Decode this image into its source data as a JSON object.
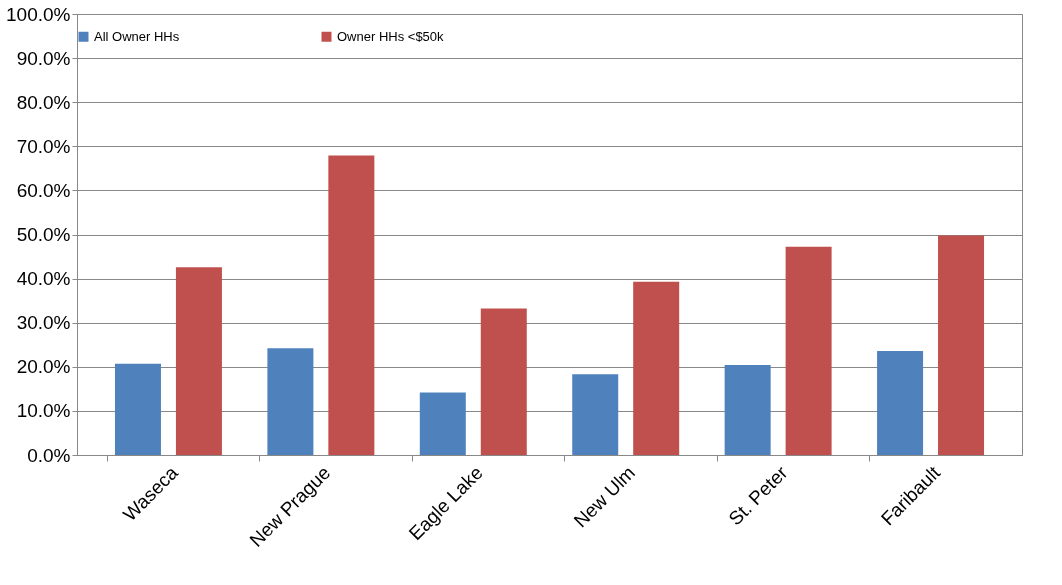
{
  "chart_data": {
    "type": "bar",
    "categories": [
      "Waseca",
      "New Prague",
      "Eagle Lake",
      "New Ulm",
      "St. Peter",
      "Faribault"
    ],
    "series": [
      {
        "name": "All Owner HHs",
        "color": "#4f81bd",
        "values": [
          20.7,
          24.2,
          14.2,
          18.3,
          20.4,
          23.6
        ]
      },
      {
        "name": "Owner HHs <$50k",
        "color": "#c0504d",
        "values": [
          42.6,
          67.9,
          33.2,
          39.3,
          47.2,
          49.8
        ]
      }
    ],
    "ylim": [
      0,
      100
    ],
    "yticks": [
      {
        "value": 0,
        "label": "0.0%"
      },
      {
        "value": 10,
        "label": "10.0%"
      },
      {
        "value": 20,
        "label": "20.0%"
      },
      {
        "value": 30,
        "label": "30.0%"
      },
      {
        "value": 40,
        "label": "40.0%"
      },
      {
        "value": 50,
        "label": "50.0%"
      },
      {
        "value": 60,
        "label": "60.0%"
      },
      {
        "value": 70,
        "label": "70.0%"
      },
      {
        "value": 80,
        "label": "80.0%"
      },
      {
        "value": 90,
        "label": "90.0%"
      },
      {
        "value": 100,
        "label": "100.0%"
      }
    ],
    "grid": "y",
    "legend": "top"
  }
}
